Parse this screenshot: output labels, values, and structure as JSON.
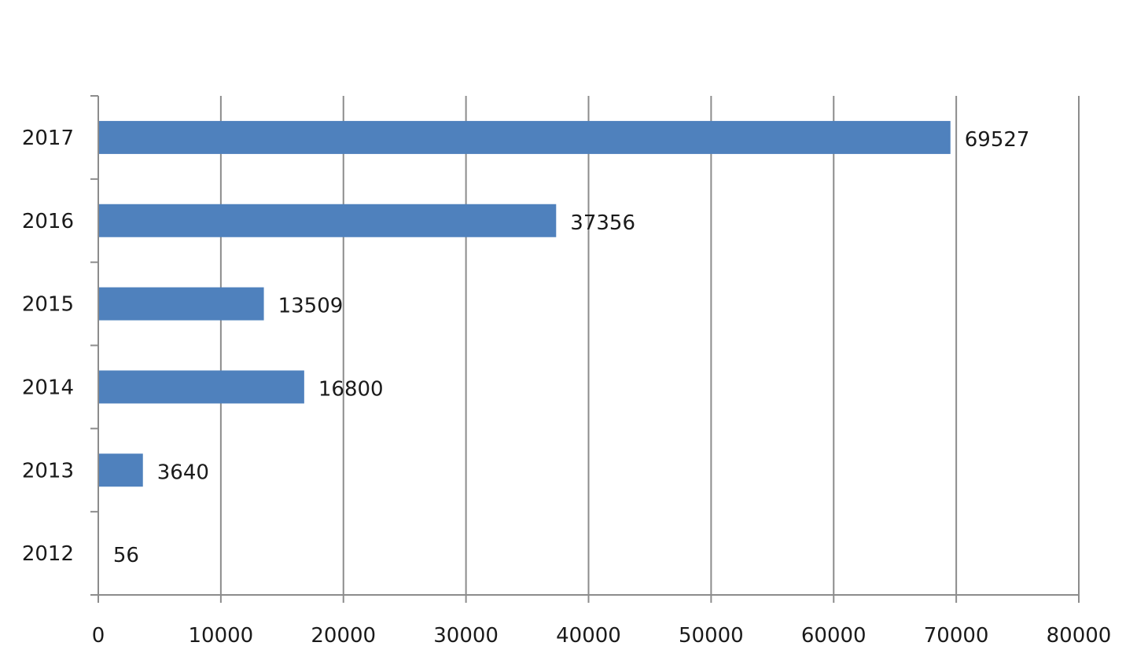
{
  "chart_data": {
    "type": "bar",
    "orientation": "horizontal",
    "title": "",
    "xlabel": "",
    "ylabel": "",
    "categories": [
      "2017",
      "2016",
      "2015",
      "2014",
      "2013",
      "2012"
    ],
    "values": [
      69527,
      37356,
      13509,
      16800,
      3640,
      56
    ],
    "value_labels": [
      "69527",
      "37356",
      "13509",
      "16800",
      "3640",
      "56"
    ],
    "xlim": [
      0,
      80000
    ],
    "x_ticks": [
      "0",
      "10000",
      "20000",
      "30000",
      "40000",
      "50000",
      "60000",
      "70000",
      "80000"
    ],
    "grid": "vertical",
    "legend": "none",
    "bar_color": "#4f81bd",
    "grid_color": "#8c8c8c"
  }
}
